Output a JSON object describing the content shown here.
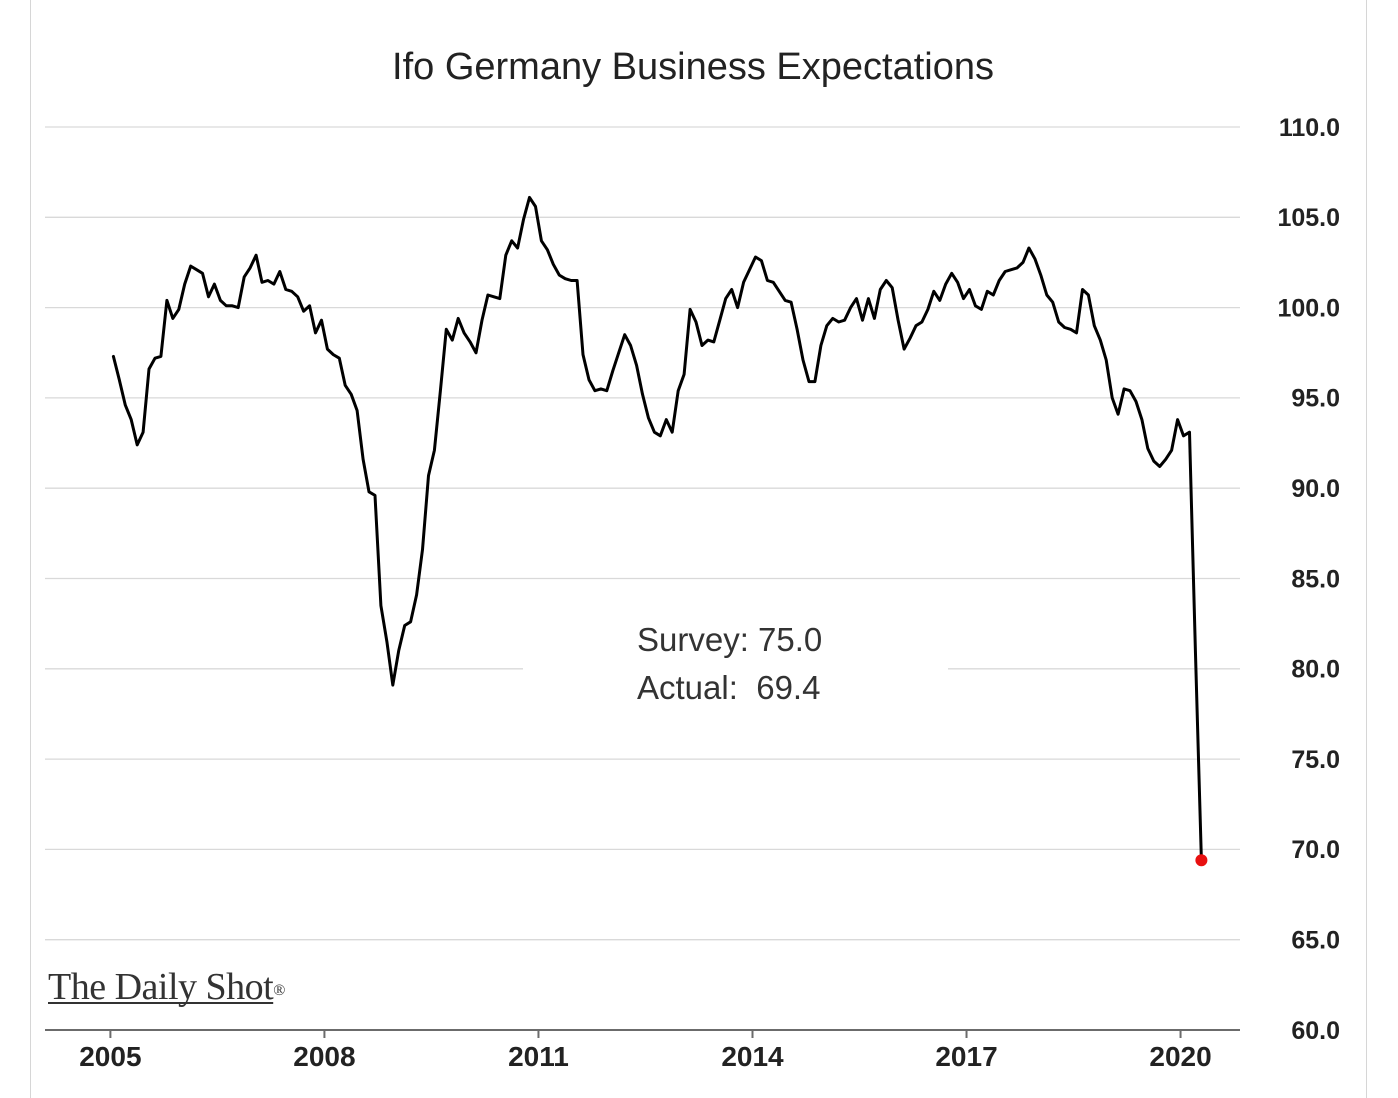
{
  "chart_data": {
    "type": "line",
    "title": "Ifo Germany Business Expectations",
    "y_axis_side": "right",
    "grid": true,
    "ylim": [
      60,
      110
    ],
    "xlim": [
      "2004-02",
      "2020-11"
    ],
    "y_tick_labels": [
      "110.0",
      "105.0",
      "100.0",
      "95.0",
      "90.0",
      "85.0",
      "80.0",
      "75.0",
      "70.0",
      "65.0",
      "60.0"
    ],
    "x_tick_labels": [
      "2005",
      "2008",
      "2011",
      "2014",
      "2017",
      "2020"
    ],
    "annotations": [
      "Survey: 75.0",
      "Actual:  69.4"
    ],
    "series": [
      {
        "color": "#000000",
        "x": [
          "2005-01",
          "2005-02",
          "2005-03",
          "2005-04",
          "2005-05",
          "2005-06",
          "2005-07",
          "2005-08",
          "2005-09",
          "2005-10",
          "2005-11",
          "2005-12",
          "2006-01",
          "2006-02",
          "2006-03",
          "2006-04",
          "2006-05",
          "2006-06",
          "2006-07",
          "2006-08",
          "2006-09",
          "2006-10",
          "2006-11",
          "2006-12",
          "2007-01",
          "2007-02",
          "2007-03",
          "2007-04",
          "2007-05",
          "2007-06",
          "2007-07",
          "2007-08",
          "2007-09",
          "2007-10",
          "2007-11",
          "2007-12",
          "2008-01",
          "2008-02",
          "2008-03",
          "2008-04",
          "2008-05",
          "2008-06",
          "2008-07",
          "2008-08",
          "2008-09",
          "2008-10",
          "2008-11",
          "2008-12",
          "2009-01",
          "2009-02",
          "2009-03",
          "2009-04",
          "2009-05",
          "2009-06",
          "2009-07",
          "2009-08",
          "2009-09",
          "2009-10",
          "2009-11",
          "2009-12",
          "2010-01",
          "2010-02",
          "2010-03",
          "2010-04",
          "2010-05",
          "2010-06",
          "2010-07",
          "2010-08",
          "2010-09",
          "2010-10",
          "2010-11",
          "2010-12",
          "2011-01",
          "2011-02",
          "2011-03",
          "2011-04",
          "2011-05",
          "2011-06",
          "2011-07",
          "2011-08",
          "2011-09",
          "2011-10",
          "2011-11",
          "2011-12",
          "2012-01",
          "2012-02",
          "2012-03",
          "2012-04",
          "2012-05",
          "2012-06",
          "2012-07",
          "2012-08",
          "2012-09",
          "2012-10",
          "2012-11",
          "2012-12",
          "2013-01",
          "2013-02",
          "2013-03",
          "2013-04",
          "2013-05",
          "2013-06",
          "2013-07",
          "2013-08",
          "2013-09",
          "2013-10",
          "2013-11",
          "2013-12",
          "2014-01",
          "2014-02",
          "2014-03",
          "2014-04",
          "2014-05",
          "2014-06",
          "2014-07",
          "2014-08",
          "2014-09",
          "2014-10",
          "2014-11",
          "2014-12",
          "2015-01",
          "2015-02",
          "2015-03",
          "2015-04",
          "2015-05",
          "2015-06",
          "2015-07",
          "2015-08",
          "2015-09",
          "2015-10",
          "2015-11",
          "2015-12",
          "2016-01",
          "2016-02",
          "2016-03",
          "2016-04",
          "2016-05",
          "2016-06",
          "2016-07",
          "2016-08",
          "2016-09",
          "2016-10",
          "2016-11",
          "2016-12",
          "2017-01",
          "2017-02",
          "2017-03",
          "2017-04",
          "2017-05",
          "2017-06",
          "2017-07",
          "2017-08",
          "2017-09",
          "2017-10",
          "2017-11",
          "2017-12",
          "2018-01",
          "2018-02",
          "2018-03",
          "2018-04",
          "2018-05",
          "2018-06",
          "2018-07",
          "2018-08",
          "2018-09",
          "2018-10",
          "2018-11",
          "2018-12",
          "2019-01",
          "2019-02",
          "2019-03",
          "2019-04",
          "2019-05",
          "2019-06",
          "2019-07",
          "2019-08",
          "2019-09",
          "2019-10",
          "2019-11",
          "2019-12",
          "2020-01",
          "2020-02",
          "2020-03",
          "2020-04"
        ],
        "values": [
          97.3,
          96.0,
          94.6,
          93.8,
          92.4,
          93.1,
          96.6,
          97.2,
          97.3,
          100.4,
          99.4,
          99.9,
          101.3,
          102.3,
          102.1,
          101.9,
          100.6,
          101.3,
          100.4,
          100.1,
          100.1,
          100.0,
          101.7,
          102.2,
          102.9,
          101.4,
          101.5,
          101.3,
          102.0,
          101.0,
          100.9,
          100.6,
          99.8,
          100.1,
          98.6,
          99.3,
          97.7,
          97.4,
          97.2,
          95.7,
          95.2,
          94.3,
          91.6,
          89.8,
          89.6,
          83.5,
          81.5,
          79.1,
          81.0,
          82.4,
          82.6,
          84.1,
          86.6,
          90.7,
          92.1,
          95.4,
          98.8,
          98.2,
          99.4,
          98.6,
          98.1,
          97.5,
          99.3,
          100.7,
          100.6,
          100.5,
          102.9,
          103.7,
          103.3,
          104.9,
          106.1,
          105.6,
          103.7,
          103.2,
          102.4,
          101.8,
          101.6,
          101.5,
          101.5,
          97.4,
          96.0,
          95.4,
          95.5,
          95.4,
          96.5,
          97.5,
          98.5,
          97.9,
          96.8,
          95.2,
          93.9,
          93.1,
          92.9,
          93.8,
          93.1,
          95.4,
          96.3,
          99.9,
          99.2,
          97.9,
          98.2,
          98.1,
          99.3,
          100.5,
          101.0,
          100.0,
          101.4,
          102.1,
          102.8,
          102.6,
          101.5,
          101.4,
          100.9,
          100.4,
          100.3,
          98.8,
          97.1,
          95.9,
          95.9,
          97.9,
          99.0,
          99.4,
          99.2,
          99.3,
          100.0,
          100.5,
          99.3,
          100.5,
          99.4,
          101.0,
          101.5,
          101.1,
          99.3,
          97.7,
          98.3,
          99.0,
          99.2,
          99.9,
          100.9,
          100.4,
          101.3,
          101.9,
          101.4,
          100.5,
          101.0,
          100.1,
          99.9,
          100.9,
          100.7,
          101.5,
          102.0,
          102.1,
          102.2,
          102.5,
          103.3,
          102.7,
          101.8,
          100.7,
          100.3,
          99.2,
          98.9,
          98.8,
          98.6,
          101.0,
          100.7,
          99.0,
          98.2,
          97.1,
          95.0,
          94.1,
          95.5,
          95.4,
          94.8,
          93.8,
          92.2,
          91.5,
          91.2,
          91.6,
          92.1,
          93.8,
          92.9,
          93.1,
          81.0,
          69.4
        ]
      }
    ],
    "highlight_point": {
      "x": "2020-04",
      "value": 69.4,
      "color": "#e81010"
    }
  },
  "branding": {
    "logo_text": "The Daily Shot",
    "logo_mark": "®"
  }
}
